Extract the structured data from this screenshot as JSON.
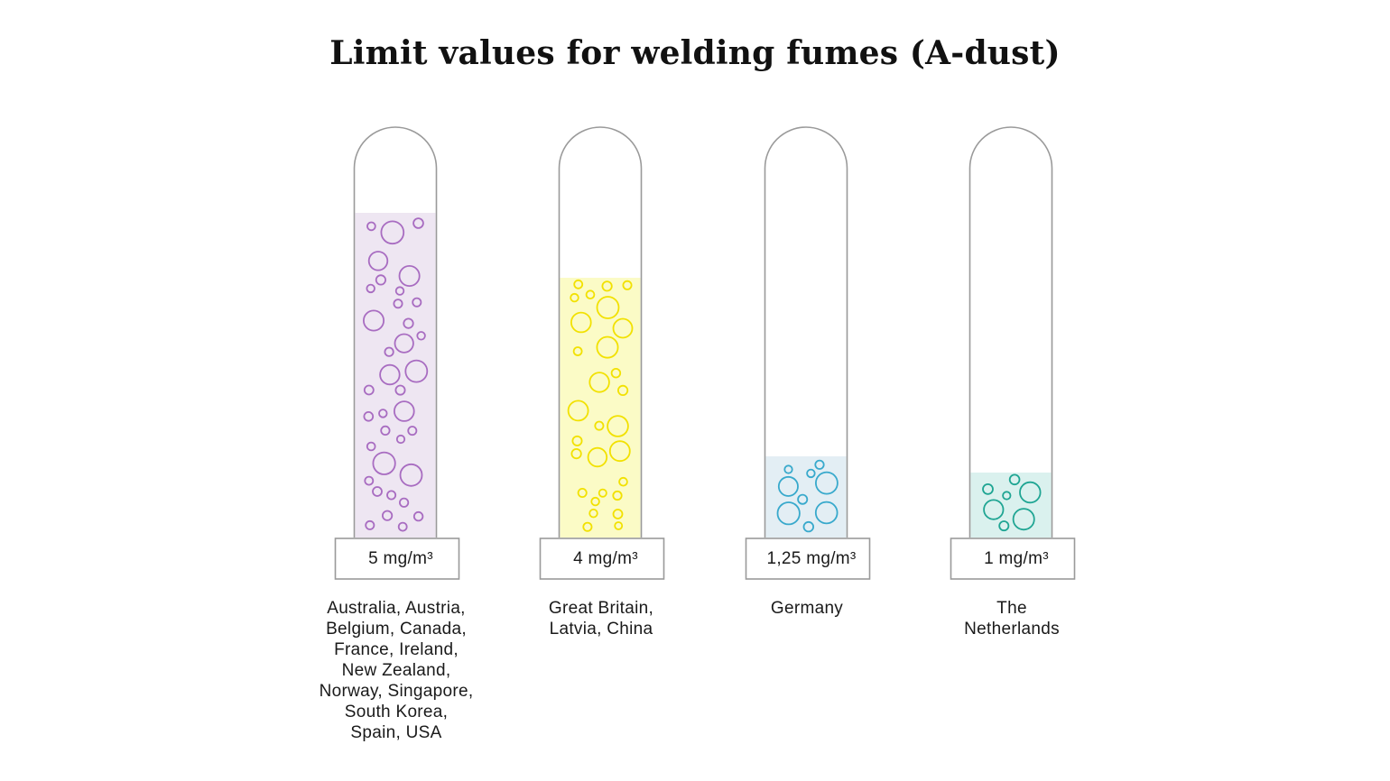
{
  "chart_data": {
    "type": "bar",
    "title": "Limit values for welding fumes (A-dust)",
    "ylim": [
      0,
      6
    ],
    "unit": "mg/m³",
    "categories": [
      "Australia, Austria, Belgium, Canada, France, Ireland, New Zealand, Norway, Singapore, South Korea, Spain, USA",
      "Great Britain, Latvia, China",
      "Germany",
      "The Netherlands"
    ],
    "category_lines": [
      [
        "Australia, Austria,",
        "Belgium, Canada,",
        "France, Ireland,",
        "New Zealand,",
        "Norway, Singapore,",
        "South Korea,",
        "Spain, USA"
      ],
      [
        "Great Britain,",
        "Latvia, China"
      ],
      [
        "Germany"
      ],
      [
        "The",
        "Netherlands"
      ]
    ],
    "values": [
      5,
      4,
      1.25,
      1
    ],
    "value_labels": [
      "5 mg/m³",
      "4 mg/m³",
      "1,25 mg/m³",
      "1 mg/m³"
    ],
    "fill_colors": [
      "#EEE6F2",
      "#FBFBC6",
      "#E3EEF4",
      "#DAF1EE"
    ],
    "bubble_colors": [
      "#A86CC1",
      "#F2E100",
      "#38A9CC",
      "#1FA593"
    ],
    "tube_stroke": "#9a9a9a",
    "grid": false
  }
}
